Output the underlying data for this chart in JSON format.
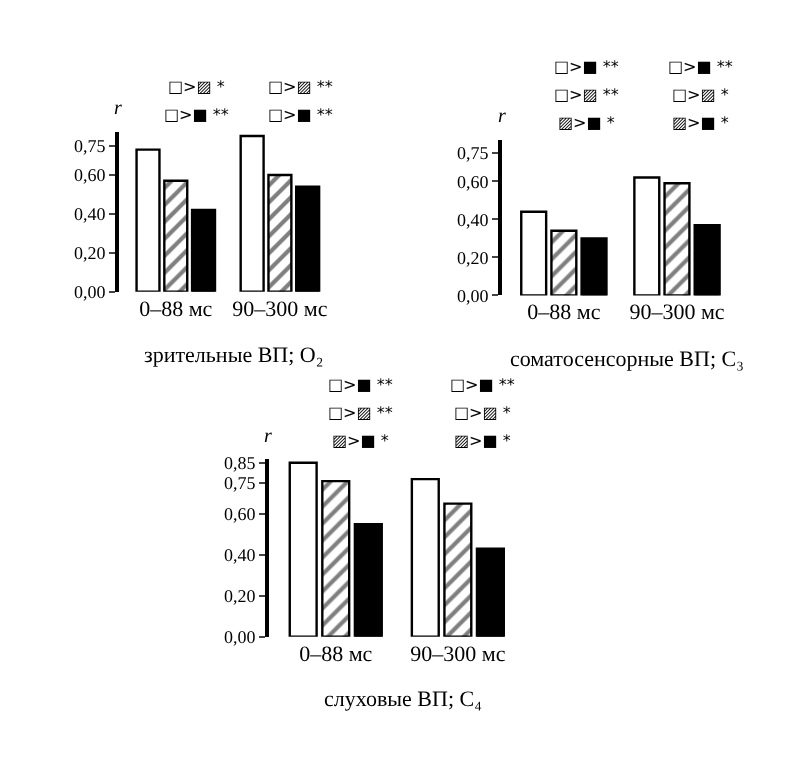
{
  "chart_data": [
    {
      "type": "bar",
      "categories": [
        "0–88 мс",
        "90–300 мс"
      ],
      "ylabel": "r",
      "xlabel": "зрительные ВП; O₂",
      "ylim": [
        0,
        0.82
      ],
      "yticks": [
        {
          "value": 0,
          "label": "0,00"
        },
        {
          "value": 0.2,
          "label": "0,20"
        },
        {
          "value": 0.4,
          "label": "0,40"
        },
        {
          "value": 0.6,
          "label": "0,60"
        },
        {
          "value": 0.75,
          "label": "0,75"
        }
      ],
      "series": [
        {
          "color": "#ffffff",
          "values": [
            0.73,
            0.8
          ]
        },
        {
          "color": "#000000",
          "values": [
            0.57,
            0.6
          ]
        },
        {
          "color": "#000000",
          "values": [
            0.42,
            0.54
          ]
        }
      ],
      "annotations": [
        "□>▨ *",
        "□>■ **",
        "□>▨ **",
        "□>■ **"
      ]
    },
    {
      "type": "bar",
      "categories": [
        "0–88 мс",
        "90–300 мс"
      ],
      "ylabel": "r",
      "xlabel": "соматосенсорные ВП; C₃",
      "ylim": [
        0,
        0.82
      ],
      "yticks": [
        {
          "value": 0,
          "label": "0,00"
        },
        {
          "value": 0.2,
          "label": "0,20"
        },
        {
          "value": 0.4,
          "label": "0,40"
        },
        {
          "value": 0.6,
          "label": "0,60"
        },
        {
          "value": 0.75,
          "label": "0,75"
        }
      ],
      "series": [
        {
          "color": "#ffffff",
          "values": [
            0.44,
            0.62
          ]
        },
        {
          "color": "#000000",
          "values": [
            0.34,
            0.59
          ]
        },
        {
          "color": "#000000",
          "values": [
            0.3,
            0.37
          ]
        }
      ],
      "annotations": [
        "□>■ **",
        "□>▨ **",
        "▨>■ *",
        "□>■ **",
        "□>▨ *",
        "▨>■ *"
      ]
    },
    {
      "type": "bar",
      "categories": [
        "0–88 мс",
        "90–300 мс"
      ],
      "ylabel": "r",
      "xlabel": "слуховые ВП; C₄",
      "ylim": [
        0,
        0.87
      ],
      "yticks": [
        {
          "value": 0,
          "label": "0,00"
        },
        {
          "value": 0.2,
          "label": "0,20"
        },
        {
          "value": 0.4,
          "label": "0,40"
        },
        {
          "value": 0.6,
          "label": "0,60"
        },
        {
          "value": 0.75,
          "label": "0,75"
        },
        {
          "value": 0.85,
          "label": "0,85"
        }
      ],
      "series": [
        {
          "color": "#ffffff",
          "values": [
            0.85,
            0.77
          ]
        },
        {
          "color": "#000000",
          "values": [
            0.76,
            0.65
          ]
        },
        {
          "color": "#000000",
          "values": [
            0.55,
            0.43
          ]
        }
      ],
      "annotations": [
        "□>■ **",
        "□>▨ **",
        "▨>■ *",
        "□>■ **",
        "□>▨ *",
        "▨>■ *"
      ]
    }
  ]
}
